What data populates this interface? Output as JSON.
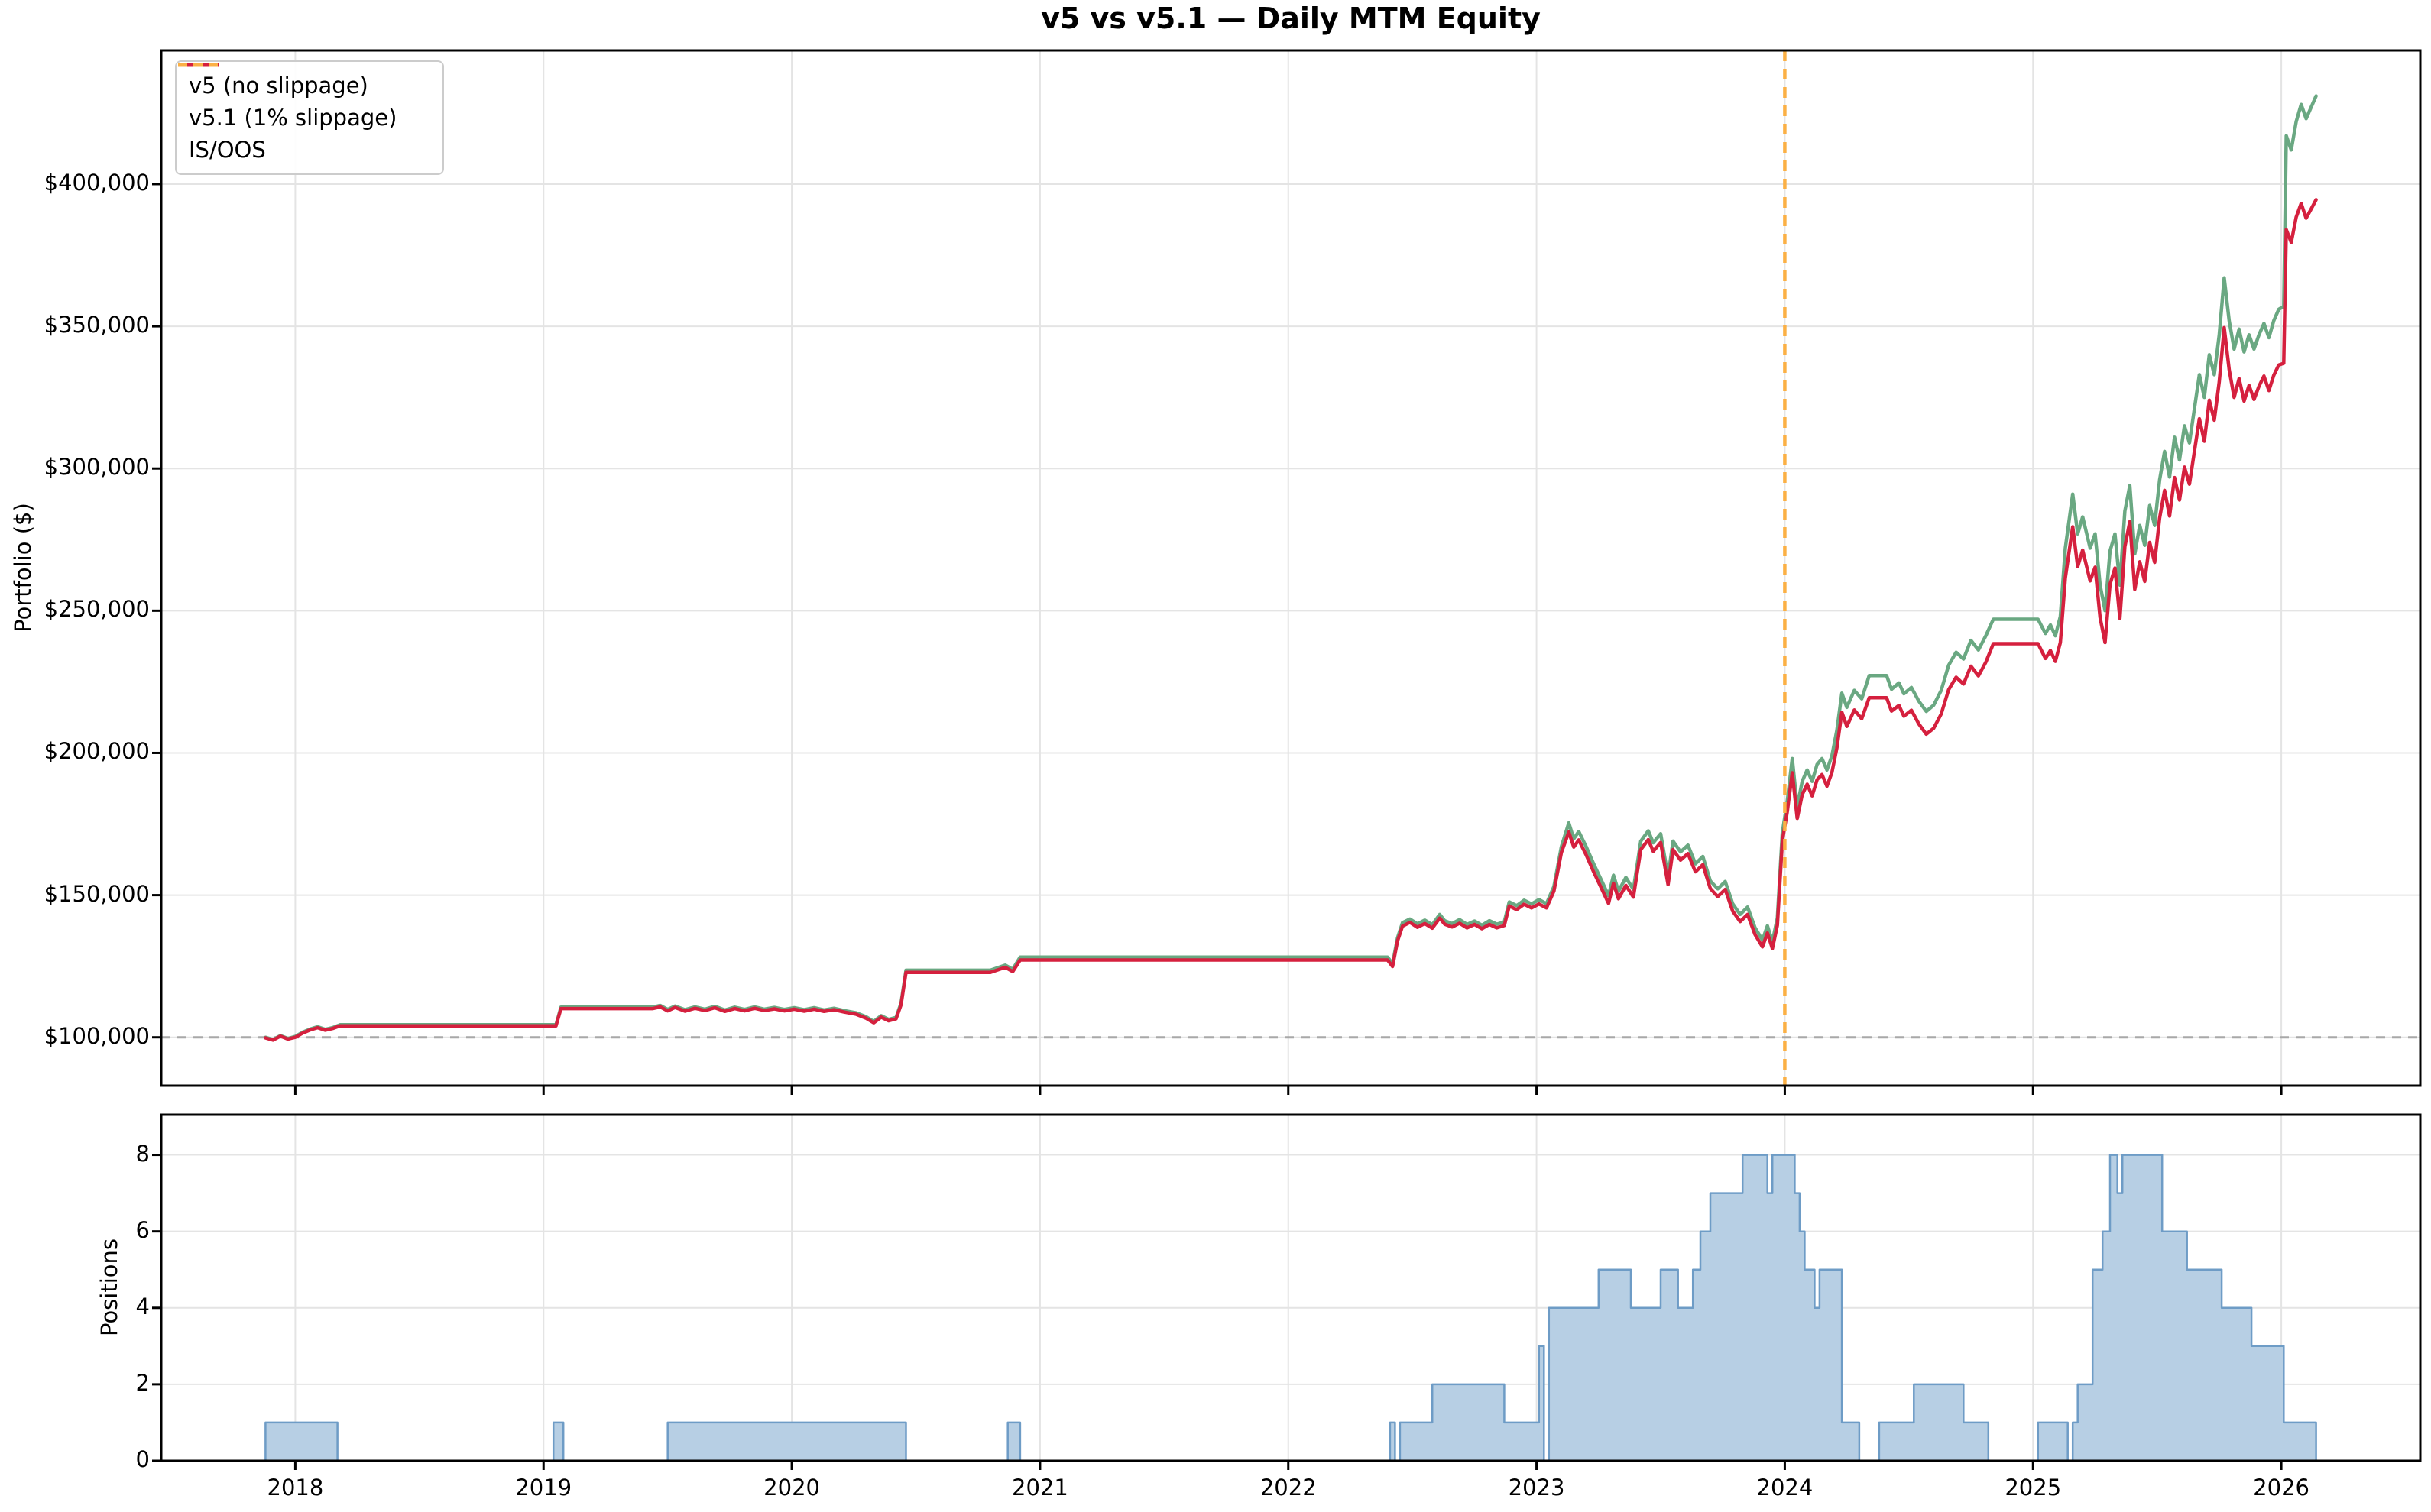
{
  "title": "v5 vs v5.1 — Daily MTM Equity",
  "colors": {
    "v5": "#6AA882",
    "v5_1": "#D5203E",
    "is_oos": "#FBB045",
    "baseline": "#A8A8A8",
    "grid": "#E4E4E4",
    "spine": "#000000",
    "positions_fill": "#B7CFE4",
    "positions_edge": "#6E9CC6",
    "background": "#FFFFFF"
  },
  "x_axis": {
    "tick_values": [
      2018,
      2019,
      2020,
      2021,
      2022,
      2023,
      2024,
      2025,
      2026
    ],
    "tick_labels": [
      "2018",
      "2019",
      "2020",
      "2021",
      "2022",
      "2023",
      "2024",
      "2025",
      "2026"
    ]
  },
  "chart_data": [
    {
      "type": "line",
      "title": "v5 vs v5.1 — Daily MTM Equity",
      "ylabel": "Portfolio ($)",
      "xlim": [
        2017.46,
        2026.56
      ],
      "ylim": [
        83000,
        447000
      ],
      "grid": true,
      "legend_position": "upper left",
      "y_ticks": [
        {
          "value": 100000,
          "label": "$100,000"
        },
        {
          "value": 150000,
          "label": "$150,000"
        },
        {
          "value": 200000,
          "label": "$200,000"
        },
        {
          "value": 250000,
          "label": "$250,000"
        },
        {
          "value": 300000,
          "label": "$300,000"
        },
        {
          "value": 350000,
          "label": "$350,000"
        },
        {
          "value": 400000,
          "label": "$400,000"
        }
      ],
      "baseline": {
        "y": 100000,
        "color": "#A8A8A8",
        "style": "dashed"
      },
      "vline": {
        "x": 2024.0,
        "label": "IS/OOS",
        "color": "#FBB045",
        "style": "dashed"
      },
      "x": [
        2017.88,
        2017.91,
        2017.94,
        2017.97,
        2018.0,
        2018.03,
        2018.06,
        2018.09,
        2018.12,
        2018.15,
        2018.18,
        2018.45,
        2018.75,
        2019.05,
        2019.07,
        2019.25,
        2019.44,
        2019.47,
        2019.5,
        2019.53,
        2019.57,
        2019.61,
        2019.65,
        2019.69,
        2019.73,
        2019.77,
        2019.81,
        2019.85,
        2019.89,
        2019.93,
        2019.97,
        2020.01,
        2020.05,
        2020.09,
        2020.13,
        2020.17,
        2020.21,
        2020.26,
        2020.3,
        2020.33,
        2020.36,
        2020.39,
        2020.42,
        2020.44,
        2020.46,
        2020.6,
        2020.8,
        2020.86,
        2020.89,
        2020.92,
        2021.3,
        2021.7,
        2022.1,
        2022.4,
        2022.42,
        2022.44,
        2022.46,
        2022.49,
        2022.52,
        2022.55,
        2022.58,
        2022.61,
        2022.63,
        2022.66,
        2022.69,
        2022.72,
        2022.75,
        2022.78,
        2022.81,
        2022.84,
        2022.87,
        2022.89,
        2022.92,
        2022.95,
        2022.98,
        2023.01,
        2023.04,
        2023.07,
        2023.1,
        2023.13,
        2023.15,
        2023.17,
        2023.2,
        2023.23,
        2023.26,
        2023.29,
        2023.31,
        2023.33,
        2023.36,
        2023.39,
        2023.42,
        2023.45,
        2023.47,
        2023.5,
        2023.53,
        2023.55,
        2023.58,
        2023.61,
        2023.64,
        2023.67,
        2023.7,
        2023.73,
        2023.76,
        2023.79,
        2023.82,
        2023.85,
        2023.88,
        2023.91,
        2023.93,
        2023.95,
        2023.97,
        2023.99,
        2024.01,
        2024.03,
        2024.05,
        2024.07,
        2024.09,
        2024.11,
        2024.13,
        2024.15,
        2024.17,
        2024.19,
        2024.21,
        2024.23,
        2024.25,
        2024.28,
        2024.31,
        2024.34,
        2024.38,
        2024.41,
        2024.43,
        2024.46,
        2024.48,
        2024.51,
        2024.54,
        2024.57,
        2024.6,
        2024.63,
        2024.66,
        2024.69,
        2024.72,
        2024.75,
        2024.78,
        2024.81,
        2024.84,
        2024.9,
        2024.96,
        2025.02,
        2025.05,
        2025.07,
        2025.09,
        2025.11,
        2025.13,
        2025.16,
        2025.18,
        2025.2,
        2025.23,
        2025.25,
        2025.27,
        2025.29,
        2025.31,
        2025.33,
        2025.35,
        2025.37,
        2025.39,
        2025.41,
        2025.43,
        2025.45,
        2025.47,
        2025.49,
        2025.51,
        2025.53,
        2025.55,
        2025.57,
        2025.59,
        2025.61,
        2025.63,
        2025.65,
        2025.67,
        2025.69,
        2025.71,
        2025.73,
        2025.75,
        2025.77,
        2025.79,
        2025.81,
        2025.83,
        2025.85,
        2025.87,
        2025.89,
        2025.91,
        2025.93,
        2025.95,
        2025.97,
        2025.99,
        2026.01,
        2026.02,
        2026.04,
        2026.06,
        2026.08,
        2026.1,
        2026.12,
        2026.14
      ],
      "series": [
        {
          "name": "v5 (no slippage)",
          "color": "#6AA882",
          "values": [
            100000,
            99200,
            100600,
            99600,
            100300,
            101800,
            102900,
            103700,
            102800,
            103400,
            104400,
            104400,
            104400,
            104400,
            110600,
            110600,
            110600,
            111200,
            109800,
            111000,
            109700,
            110700,
            109900,
            110900,
            109600,
            110600,
            109800,
            110700,
            109900,
            110500,
            109800,
            110400,
            109700,
            110400,
            109600,
            110200,
            109400,
            108600,
            107200,
            105600,
            107600,
            106300,
            107000,
            112000,
            123600,
            123600,
            123600,
            125400,
            123900,
            128200,
            128200,
            128200,
            128200,
            128200,
            125900,
            135000,
            140300,
            141600,
            139900,
            141200,
            139600,
            143200,
            141000,
            140000,
            141400,
            139700,
            140900,
            139400,
            141000,
            139800,
            140600,
            147600,
            146300,
            148200,
            146900,
            148400,
            147000,
            153000,
            167000,
            175400,
            169800,
            172400,
            167000,
            161000,
            155500,
            149800,
            157000,
            151400,
            156200,
            152000,
            169000,
            172600,
            168400,
            171600,
            156500,
            169000,
            165200,
            167600,
            161000,
            163600,
            155000,
            152200,
            154800,
            147000,
            143200,
            145800,
            138600,
            134200,
            139200,
            133600,
            142000,
            172000,
            183000,
            198000,
            181000,
            190000,
            194000,
            190000,
            196000,
            198000,
            194000,
            199000,
            208000,
            221000,
            216000,
            222000,
            219000,
            227200,
            227200,
            227200,
            222400,
            224600,
            220800,
            223000,
            218200,
            214600,
            216800,
            222000,
            230800,
            235400,
            233000,
            239600,
            236200,
            241200,
            247000,
            247000,
            247000,
            247000,
            242000,
            245000,
            241200,
            248000,
            272000,
            291000,
            277000,
            283000,
            272000,
            277000,
            259000,
            250000,
            271000,
            277000,
            259000,
            285000,
            294000,
            270000,
            280000,
            273000,
            287000,
            280000,
            296000,
            306000,
            297000,
            311000,
            303000,
            315000,
            309000,
            321000,
            333000,
            325000,
            340000,
            333000,
            347000,
            367000,
            352000,
            342000,
            349000,
            341000,
            347000,
            342000,
            347000,
            351000,
            346000,
            352000,
            356000,
            357000,
            417000,
            412000,
            422000,
            428000,
            423000,
            427000,
            431000
          ]
        },
        {
          "name": "v5.1 (1% slippage)",
          "color": "#D5203E",
          "values": [
            99800,
            99000,
            100400,
            99400,
            100000,
            101500,
            102600,
            103400,
            102500,
            103100,
            104000,
            104000,
            104000,
            104000,
            110100,
            110100,
            110100,
            110700,
            109300,
            110500,
            109200,
            110200,
            109400,
            110400,
            109100,
            110100,
            109300,
            110200,
            109400,
            110000,
            109300,
            109900,
            109200,
            109900,
            109100,
            109700,
            108900,
            108100,
            106700,
            105100,
            107100,
            105800,
            106500,
            111400,
            122800,
            122800,
            122800,
            124600,
            123100,
            127200,
            127200,
            127200,
            127200,
            127200,
            124900,
            133900,
            139100,
            140400,
            138700,
            140000,
            138400,
            141900,
            139800,
            138800,
            140100,
            138500,
            139700,
            138200,
            139700,
            138500,
            139300,
            146200,
            144900,
            146800,
            145500,
            146900,
            145500,
            151400,
            165000,
            172200,
            166900,
            169400,
            164100,
            158200,
            152700,
            147100,
            154200,
            148700,
            153400,
            149300,
            166000,
            169500,
            165400,
            168500,
            153700,
            166000,
            162300,
            164600,
            158200,
            160700,
            152300,
            149500,
            152000,
            144400,
            140700,
            143200,
            136200,
            131800,
            136700,
            131200,
            139400,
            169000,
            179400,
            193000,
            177000,
            185300,
            189000,
            184900,
            190600,
            192400,
            188300,
            193100,
            201800,
            214300,
            209300,
            215100,
            212000,
            219400,
            219400,
            219400,
            214700,
            216700,
            212900,
            215000,
            210200,
            206600,
            208700,
            213700,
            222200,
            226600,
            224200,
            230500,
            227100,
            231900,
            238400,
            238400,
            238400,
            238400,
            233200,
            236000,
            232200,
            238800,
            261500,
            279500,
            265500,
            271300,
            260500,
            265300,
            247600,
            238800,
            259300,
            265000,
            247300,
            272500,
            281300,
            257500,
            267200,
            260300,
            274000,
            267000,
            282600,
            292300,
            283300,
            296800,
            288900,
            300500,
            294500,
            306000,
            317500,
            309600,
            324000,
            317000,
            330500,
            349500,
            334800,
            325000,
            331600,
            323700,
            329200,
            324300,
            328900,
            332500,
            327400,
            332800,
            336400,
            337000,
            384000,
            379500,
            388400,
            393200,
            388000,
            391200,
            394500
          ]
        }
      ]
    },
    {
      "type": "area",
      "ylabel": "Positions",
      "xlim": [
        2017.46,
        2026.56
      ],
      "ylim": [
        0,
        9.05
      ],
      "grid": true,
      "step": true,
      "fill": "#B7CFE4",
      "edge": "#6E9CC6",
      "y_ticks": [
        {
          "value": 0,
          "label": "0"
        },
        {
          "value": 2,
          "label": "2"
        },
        {
          "value": 4,
          "label": "4"
        },
        {
          "value": 6,
          "label": "6"
        },
        {
          "value": 8,
          "label": "8"
        }
      ],
      "steps": [
        [
          2017.8,
          0
        ],
        [
          2017.88,
          1
        ],
        [
          2018.17,
          0
        ],
        [
          2019.04,
          1
        ],
        [
          2019.08,
          0
        ],
        [
          2019.5,
          1
        ],
        [
          2020.46,
          0
        ],
        [
          2020.87,
          1
        ],
        [
          2020.92,
          0
        ],
        [
          2022.41,
          1
        ],
        [
          2022.43,
          0
        ],
        [
          2022.45,
          1
        ],
        [
          2022.58,
          2
        ],
        [
          2022.87,
          1
        ],
        [
          2023.01,
          3
        ],
        [
          2023.03,
          0
        ],
        [
          2023.05,
          4
        ],
        [
          2023.25,
          5
        ],
        [
          2023.38,
          4
        ],
        [
          2023.5,
          5
        ],
        [
          2023.57,
          4
        ],
        [
          2023.63,
          5
        ],
        [
          2023.66,
          6
        ],
        [
          2023.7,
          7
        ],
        [
          2023.83,
          8
        ],
        [
          2023.93,
          7
        ],
        [
          2023.95,
          8
        ],
        [
          2024.04,
          7
        ],
        [
          2024.06,
          6
        ],
        [
          2024.08,
          5
        ],
        [
          2024.12,
          4
        ],
        [
          2024.14,
          5
        ],
        [
          2024.23,
          1
        ],
        [
          2024.3,
          0
        ],
        [
          2024.38,
          1
        ],
        [
          2024.52,
          2
        ],
        [
          2024.72,
          1
        ],
        [
          2024.82,
          0
        ],
        [
          2025.02,
          1
        ],
        [
          2025.14,
          0
        ],
        [
          2025.16,
          1
        ],
        [
          2025.18,
          2
        ],
        [
          2025.24,
          5
        ],
        [
          2025.28,
          6
        ],
        [
          2025.31,
          8
        ],
        [
          2025.34,
          7
        ],
        [
          2025.36,
          8
        ],
        [
          2025.52,
          6
        ],
        [
          2025.62,
          5
        ],
        [
          2025.76,
          4
        ],
        [
          2025.88,
          3
        ],
        [
          2026.01,
          1
        ],
        [
          2026.14,
          0
        ]
      ]
    }
  ]
}
